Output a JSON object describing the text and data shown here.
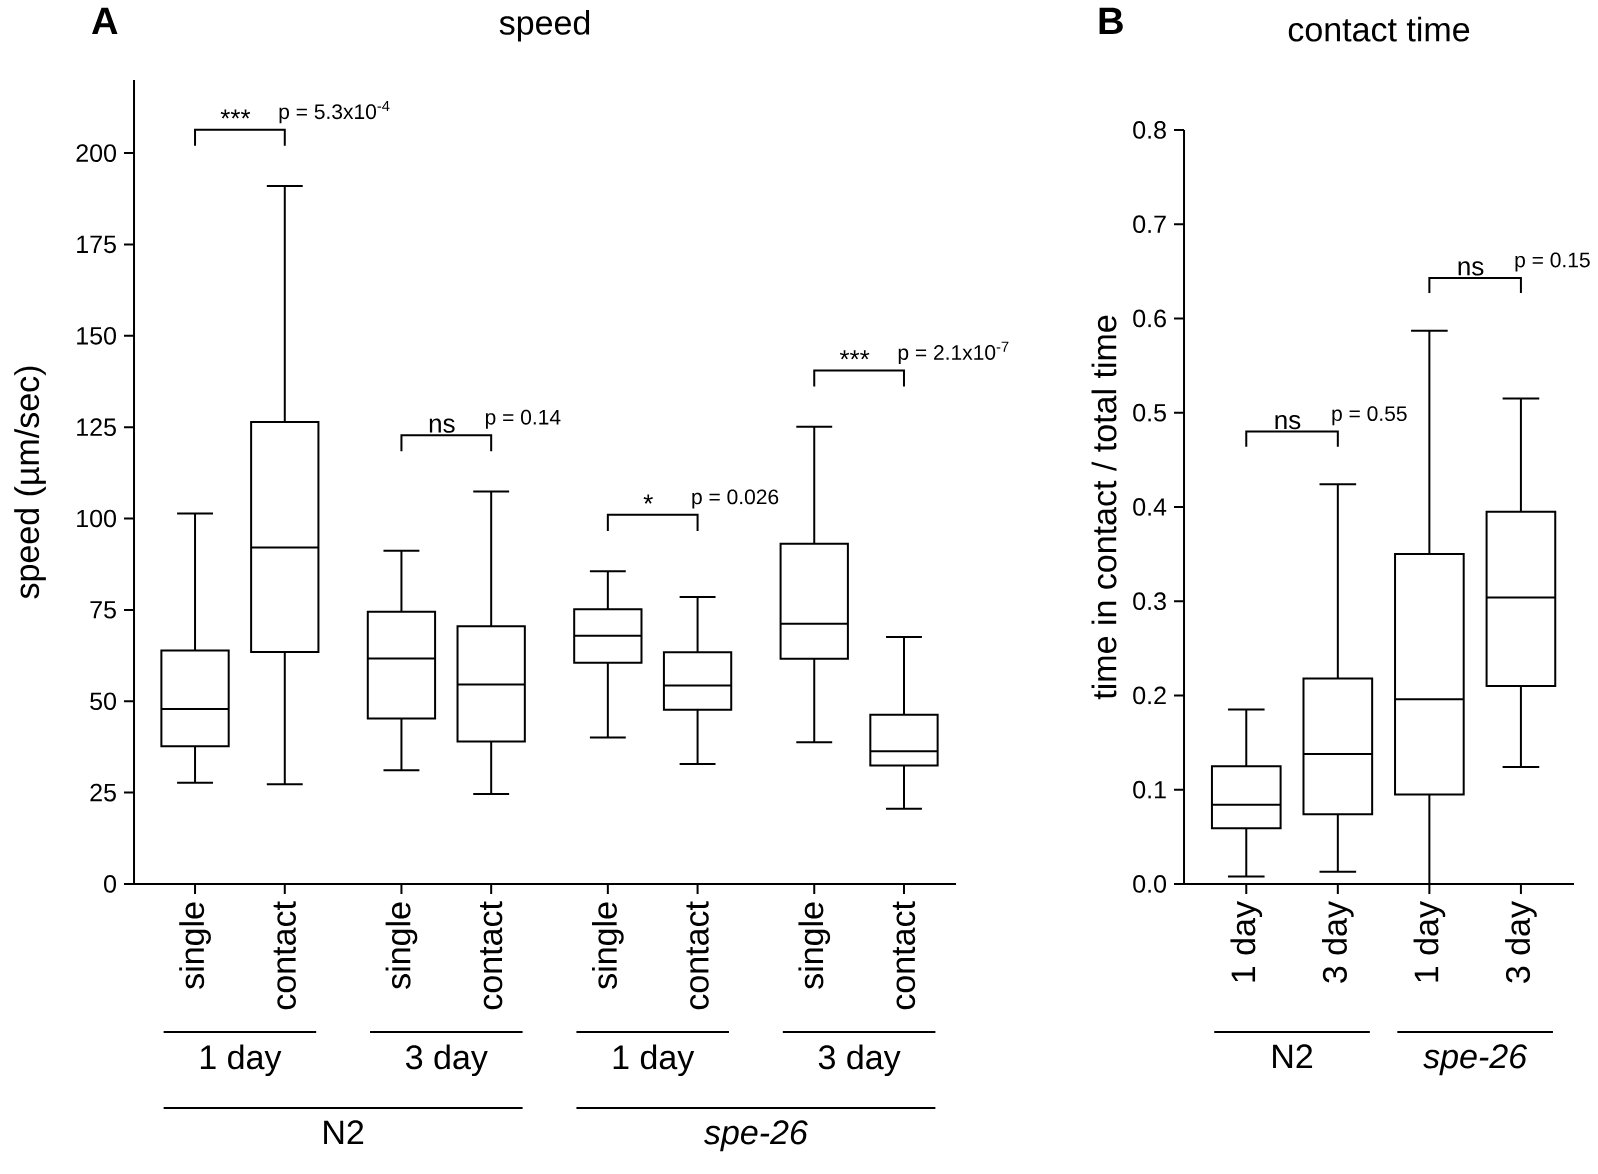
{
  "chart_data": [
    {
      "type": "box",
      "title": "speed",
      "ylabel": "speed (µm/sec)",
      "categories": [
        "single",
        "contact",
        "single",
        "contact",
        "single",
        "contact",
        "single",
        "contact"
      ],
      "boxes": [
        {
          "low": 27.7,
          "q1": 37.7,
          "median": 47.9,
          "q3": 63.9,
          "high": 101.4
        },
        {
          "low": 27.3,
          "q1": 63.5,
          "median": 92.1,
          "q3": 126.4,
          "high": 191
        },
        {
          "low": 31.1,
          "q1": 45.3,
          "median": 61.7,
          "q3": 74.5,
          "high": 91.2
        },
        {
          "low": 24.6,
          "q1": 39,
          "median": 54.6,
          "q3": 70.5,
          "high": 107.4
        },
        {
          "low": 40.1,
          "q1": 60.5,
          "median": 67.9,
          "q3": 75.2,
          "high": 85.6
        },
        {
          "low": 32.8,
          "q1": 47.7,
          "median": 54.3,
          "q3": 63.4,
          "high": 78.5
        },
        {
          "low": 38.8,
          "q1": 61.6,
          "median": 71.2,
          "q3": 93.1,
          "high": 125.1
        },
        {
          "low": 20.6,
          "q1": 32.4,
          "median": 36.3,
          "q3": 46.3,
          "high": 67.6
        }
      ],
      "ylim": [
        0,
        220
      ],
      "yticks": [
        0,
        25,
        50,
        75,
        100,
        125,
        150,
        175,
        200
      ],
      "annotations": [
        "A",
        "***",
        "p = 5.3x10$^{-4}$",
        "ns",
        "p = 0.14",
        "*",
        "p = 0.026",
        "***",
        "p = 2.1x10$^{-7}$",
        "1 day",
        "3 day",
        "1 day",
        "3 day",
        "N2",
        "*spe-26*"
      ]
    },
    {
      "type": "box",
      "title": "contact time",
      "ylabel": "time in contact / total time",
      "categories": [
        "1 day",
        "3 day",
        "1 day",
        "3 day"
      ],
      "boxes": [
        {
          "low": 0.008,
          "q1": 0.059,
          "median": 0.084,
          "q3": 0.125,
          "high": 0.185
        },
        {
          "low": 0.013,
          "q1": 0.074,
          "median": 0.138,
          "q3": 0.218,
          "high": 0.424
        },
        {
          "low": 0,
          "q1": 0.095,
          "median": 0.196,
          "q3": 0.35,
          "high": 0.587
        },
        {
          "low": 0.124,
          "q1": 0.21,
          "median": 0.304,
          "q3": 0.395,
          "high": 0.515
        }
      ],
      "ylim": [
        0,
        0.8
      ],
      "yticks": [
        {
          "value": 0,
          "label": "0.0"
        },
        0.1,
        0.2,
        0.3,
        0.4,
        0.5,
        0.6,
        0.7,
        0.8
      ],
      "annotations": [
        "B",
        "ns",
        "p = 0.55",
        "ns",
        "p = 0.15",
        "N2",
        "*spe-26*"
      ]
    }
  ]
}
